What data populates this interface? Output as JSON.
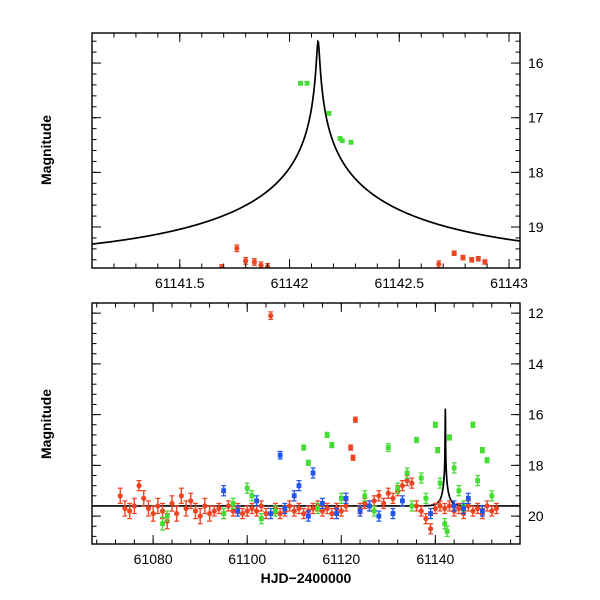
{
  "chart_data": [
    {
      "type": "scatter",
      "panel": "top",
      "title": "",
      "xlabel": "",
      "ylabel": "Magnitude",
      "xlim": [
        61141.1,
        61143.05
      ],
      "ylim": [
        19.75,
        15.45
      ],
      "y_inverted": true,
      "xticks": [
        61141.5,
        61142,
        61142.5,
        61143
      ],
      "xtick_labels": [
        "61141.5",
        "61142",
        "61142.5",
        "61143"
      ],
      "yticks": [
        16,
        17,
        18,
        19
      ],
      "ytick_labels": [
        "16",
        "17",
        "18",
        "19"
      ],
      "model": {
        "name": "model light curve",
        "t0": 61142.13,
        "m_peak": 15.6,
        "m_base": 19.6,
        "u0": 0.005,
        "tE": 1.2,
        "color": "#000000"
      },
      "series": [
        {
          "name": "green",
          "color": "#44dd33",
          "points": [
            {
              "x": 61142.05,
              "y": 16.37,
              "err": 0.03
            },
            {
              "x": 61142.08,
              "y": 16.37,
              "err": 0.03
            },
            {
              "x": 61142.18,
              "y": 16.92,
              "err": 0.03
            },
            {
              "x": 61142.23,
              "y": 17.38,
              "err": 0.03
            },
            {
              "x": 61142.24,
              "y": 17.42,
              "err": 0.03
            },
            {
              "x": 61142.28,
              "y": 17.45,
              "err": 0.03
            }
          ]
        },
        {
          "name": "red",
          "color": "#ee4422",
          "points": [
            {
              "x": 61141.69,
              "y": 19.75,
              "err": 0.06
            },
            {
              "x": 61141.76,
              "y": 19.39,
              "err": 0.06
            },
            {
              "x": 61141.8,
              "y": 19.62,
              "err": 0.06
            },
            {
              "x": 61141.84,
              "y": 19.64,
              "err": 0.06
            },
            {
              "x": 61141.87,
              "y": 19.7,
              "err": 0.06
            },
            {
              "x": 61141.9,
              "y": 19.73,
              "err": 0.06
            },
            {
              "x": 61142.68,
              "y": 19.68,
              "err": 0.06
            },
            {
              "x": 61142.75,
              "y": 19.48,
              "err": 0.04
            },
            {
              "x": 61142.79,
              "y": 19.56,
              "err": 0.04
            },
            {
              "x": 61142.83,
              "y": 19.6,
              "err": 0.04
            },
            {
              "x": 61142.86,
              "y": 19.58,
              "err": 0.04
            },
            {
              "x": 61142.89,
              "y": 19.64,
              "err": 0.04
            }
          ]
        }
      ]
    },
    {
      "type": "scatter",
      "panel": "bottom",
      "title": "",
      "xlabel": "HJD−2400000",
      "ylabel": "Magnitude",
      "xlim": [
        61067,
        61158
      ],
      "ylim": [
        21.1,
        11.6
      ],
      "y_inverted": true,
      "xticks": [
        61080,
        61100,
        61120,
        61140
      ],
      "xtick_labels": [
        "61080",
        "61100",
        "61120",
        "61140"
      ],
      "yticks": [
        12,
        14,
        16,
        18,
        20
      ],
      "ytick_labels": [
        "12",
        "14",
        "16",
        "18",
        "20"
      ],
      "model": {
        "name": "model light curve",
        "t0": 61142.13,
        "m_peak": 15.6,
        "m_base": 19.6,
        "u0": 0.005,
        "tE": 1.2,
        "color": "#000000"
      },
      "series": [
        {
          "name": "red",
          "color": "#ee4422",
          "points": [
            {
              "x": 61073,
              "y": 19.2,
              "err": 0.3
            },
            {
              "x": 61074,
              "y": 19.7,
              "err": 0.3
            },
            {
              "x": 61075,
              "y": 19.8,
              "err": 0.3
            },
            {
              "x": 61076,
              "y": 19.6,
              "err": 0.3
            },
            {
              "x": 61077,
              "y": 18.8,
              "err": 0.2
            },
            {
              "x": 61078,
              "y": 19.3,
              "err": 0.3
            },
            {
              "x": 61079,
              "y": 19.7,
              "err": 0.3
            },
            {
              "x": 61080,
              "y": 19.9,
              "err": 0.3
            },
            {
              "x": 61081,
              "y": 19.6,
              "err": 0.3
            },
            {
              "x": 61082,
              "y": 19.8,
              "err": 0.3
            },
            {
              "x": 61083,
              "y": 20.2,
              "err": 0.3
            },
            {
              "x": 61084,
              "y": 19.5,
              "err": 0.3
            },
            {
              "x": 61085,
              "y": 19.9,
              "err": 0.3
            },
            {
              "x": 61086,
              "y": 19.2,
              "err": 0.3
            },
            {
              "x": 61087,
              "y": 19.7,
              "err": 0.3
            },
            {
              "x": 61088,
              "y": 19.4,
              "err": 0.3
            },
            {
              "x": 61089,
              "y": 19.8,
              "err": 0.3
            },
            {
              "x": 61090,
              "y": 20.0,
              "err": 0.3
            },
            {
              "x": 61091,
              "y": 19.6,
              "err": 0.3
            },
            {
              "x": 61092,
              "y": 19.9,
              "err": 0.3
            },
            {
              "x": 61093,
              "y": 19.8,
              "err": 0.2
            },
            {
              "x": 61094,
              "y": 19.7,
              "err": 0.2
            },
            {
              "x": 61095,
              "y": 19.9,
              "err": 0.2
            },
            {
              "x": 61096,
              "y": 19.6,
              "err": 0.2
            },
            {
              "x": 61097,
              "y": 19.8,
              "err": 0.2
            },
            {
              "x": 61098,
              "y": 19.7,
              "err": 0.2
            },
            {
              "x": 61099,
              "y": 19.9,
              "err": 0.2
            },
            {
              "x": 61100,
              "y": 19.8,
              "err": 0.2
            },
            {
              "x": 61101,
              "y": 19.7,
              "err": 0.2
            },
            {
              "x": 61102,
              "y": 19.8,
              "err": 0.2
            },
            {
              "x": 61103,
              "y": 19.6,
              "err": 0.2
            },
            {
              "x": 61104,
              "y": 19.9,
              "err": 0.2
            },
            {
              "x": 61105,
              "y": 12.1,
              "err": 0.15
            },
            {
              "x": 61106,
              "y": 19.7,
              "err": 0.2
            },
            {
              "x": 61107,
              "y": 19.9,
              "err": 0.2
            },
            {
              "x": 61108,
              "y": 19.8,
              "err": 0.2
            },
            {
              "x": 61109,
              "y": 19.6,
              "err": 0.2
            },
            {
              "x": 61110,
              "y": 19.8,
              "err": 0.2
            },
            {
              "x": 61111,
              "y": 19.7,
              "err": 0.2
            },
            {
              "x": 61112,
              "y": 19.9,
              "err": 0.2
            },
            {
              "x": 61113,
              "y": 19.8,
              "err": 0.2
            },
            {
              "x": 61114,
              "y": 19.7,
              "err": 0.2
            },
            {
              "x": 61115,
              "y": 19.6,
              "err": 0.2
            },
            {
              "x": 61116,
              "y": 19.8,
              "err": 0.2
            },
            {
              "x": 61117,
              "y": 19.7,
              "err": 0.2
            },
            {
              "x": 61118,
              "y": 19.9,
              "err": 0.2
            },
            {
              "x": 61119,
              "y": 19.7,
              "err": 0.2
            },
            {
              "x": 61120,
              "y": 19.8,
              "err": 0.2
            },
            {
              "x": 61121,
              "y": 19.6,
              "err": 0.2
            },
            {
              "x": 61122,
              "y": 17.3,
              "err": 0.1
            },
            {
              "x": 61122.5,
              "y": 17.7,
              "err": 0.1
            },
            {
              "x": 61123,
              "y": 16.2,
              "err": 0.1
            },
            {
              "x": 61124,
              "y": 19.7,
              "err": 0.2
            },
            {
              "x": 61125,
              "y": 19.5,
              "err": 0.2
            },
            {
              "x": 61126,
              "y": 19.6,
              "err": 0.2
            },
            {
              "x": 61127,
              "y": 19.4,
              "err": 0.2
            },
            {
              "x": 61128,
              "y": 19.2,
              "err": 0.2
            },
            {
              "x": 61129,
              "y": 19.5,
              "err": 0.2
            },
            {
              "x": 61130,
              "y": 19.1,
              "err": 0.2
            },
            {
              "x": 61131,
              "y": 19.3,
              "err": 0.2
            },
            {
              "x": 61132,
              "y": 19.0,
              "err": 0.2
            },
            {
              "x": 61133,
              "y": 18.8,
              "err": 0.2
            },
            {
              "x": 61134,
              "y": 18.6,
              "err": 0.2
            },
            {
              "x": 61135,
              "y": 18.7,
              "err": 0.2
            },
            {
              "x": 61136,
              "y": 19.6,
              "err": 0.2
            },
            {
              "x": 61137,
              "y": 19.8,
              "err": 0.2
            },
            {
              "x": 61138,
              "y": 20.1,
              "err": 0.2
            },
            {
              "x": 61139,
              "y": 20.5,
              "err": 0.2
            },
            {
              "x": 61140,
              "y": 19.7,
              "err": 0.2
            },
            {
              "x": 61141,
              "y": 19.6,
              "err": 0.2
            },
            {
              "x": 61142,
              "y": 19.7,
              "err": 0.2
            },
            {
              "x": 61143,
              "y": 19.6,
              "err": 0.2
            },
            {
              "x": 61144,
              "y": 19.8,
              "err": 0.2
            },
            {
              "x": 61145,
              "y": 19.7,
              "err": 0.2
            },
            {
              "x": 61146,
              "y": 19.9,
              "err": 0.2
            },
            {
              "x": 61147,
              "y": 19.6,
              "err": 0.2
            },
            {
              "x": 61148,
              "y": 19.8,
              "err": 0.2
            },
            {
              "x": 61149,
              "y": 19.7,
              "err": 0.2
            },
            {
              "x": 61150,
              "y": 19.9,
              "err": 0.2
            },
            {
              "x": 61151,
              "y": 19.6,
              "err": 0.2
            },
            {
              "x": 61152,
              "y": 19.8,
              "err": 0.2
            },
            {
              "x": 61153,
              "y": 19.7,
              "err": 0.2
            }
          ]
        },
        {
          "name": "green",
          "color": "#44dd33",
          "points": [
            {
              "x": 61082,
              "y": 20.3,
              "err": 0.25
            },
            {
              "x": 61083,
              "y": 20.0,
              "err": 0.2
            },
            {
              "x": 61095,
              "y": 19.9,
              "err": 0.2
            },
            {
              "x": 61097,
              "y": 19.5,
              "err": 0.2
            },
            {
              "x": 61100,
              "y": 18.9,
              "err": 0.2
            },
            {
              "x": 61101,
              "y": 19.2,
              "err": 0.2
            },
            {
              "x": 61103,
              "y": 20.1,
              "err": 0.2
            },
            {
              "x": 61106,
              "y": 19.8,
              "err": 0.2
            },
            {
              "x": 61112,
              "y": 17.3,
              "err": 0.1
            },
            {
              "x": 61113,
              "y": 17.9,
              "err": 0.1
            },
            {
              "x": 61115,
              "y": 19.7,
              "err": 0.2
            },
            {
              "x": 61117,
              "y": 16.8,
              "err": 0.1
            },
            {
              "x": 61118,
              "y": 17.2,
              "err": 0.1
            },
            {
              "x": 61120,
              "y": 19.3,
              "err": 0.2
            },
            {
              "x": 61125,
              "y": 19.2,
              "err": 0.2
            },
            {
              "x": 61127,
              "y": 19.8,
              "err": 0.2
            },
            {
              "x": 61130,
              "y": 17.3,
              "err": 0.15
            },
            {
              "x": 61132,
              "y": 18.9,
              "err": 0.2
            },
            {
              "x": 61134,
              "y": 18.3,
              "err": 0.2
            },
            {
              "x": 61135,
              "y": 19.6,
              "err": 0.2
            },
            {
              "x": 61136,
              "y": 17.0,
              "err": 0.1
            },
            {
              "x": 61137,
              "y": 18.5,
              "err": 0.2
            },
            {
              "x": 61138,
              "y": 19.3,
              "err": 0.2
            },
            {
              "x": 61140,
              "y": 16.4,
              "err": 0.1
            },
            {
              "x": 61140.5,
              "y": 17.4,
              "err": 0.1
            },
            {
              "x": 61141,
              "y": 18.7,
              "err": 0.2
            },
            {
              "x": 61142,
              "y": 20.3,
              "err": 0.2
            },
            {
              "x": 61142.5,
              "y": 20.6,
              "err": 0.2
            },
            {
              "x": 61143,
              "y": 16.9,
              "err": 0.1
            },
            {
              "x": 61144,
              "y": 18.1,
              "err": 0.2
            },
            {
              "x": 61145,
              "y": 19.0,
              "err": 0.2
            },
            {
              "x": 61146,
              "y": 19.6,
              "err": 0.2
            },
            {
              "x": 61148,
              "y": 16.4,
              "err": 0.1
            },
            {
              "x": 61149,
              "y": 18.6,
              "err": 0.2
            },
            {
              "x": 61150,
              "y": 17.4,
              "err": 0.1
            },
            {
              "x": 61151,
              "y": 17.8,
              "err": 0.1
            },
            {
              "x": 61152,
              "y": 19.2,
              "err": 0.2
            }
          ]
        },
        {
          "name": "blue",
          "color": "#2255ee",
          "points": [
            {
              "x": 61095,
              "y": 19.0,
              "err": 0.2
            },
            {
              "x": 61098,
              "y": 19.8,
              "err": 0.2
            },
            {
              "x": 61102,
              "y": 19.4,
              "err": 0.2
            },
            {
              "x": 61105,
              "y": 19.9,
              "err": 0.2
            },
            {
              "x": 61107,
              "y": 17.6,
              "err": 0.15
            },
            {
              "x": 61108,
              "y": 19.7,
              "err": 0.2
            },
            {
              "x": 61110,
              "y": 19.2,
              "err": 0.2
            },
            {
              "x": 61111,
              "y": 18.8,
              "err": 0.2
            },
            {
              "x": 61113,
              "y": 20.0,
              "err": 0.2
            },
            {
              "x": 61114,
              "y": 18.3,
              "err": 0.2
            },
            {
              "x": 61116,
              "y": 19.5,
              "err": 0.2
            },
            {
              "x": 61119,
              "y": 19.9,
              "err": 0.2
            },
            {
              "x": 61121,
              "y": 19.3,
              "err": 0.2
            },
            {
              "x": 61124,
              "y": 19.8,
              "err": 0.2
            },
            {
              "x": 61126,
              "y": 19.6,
              "err": 0.2
            },
            {
              "x": 61128,
              "y": 20.0,
              "err": 0.2
            },
            {
              "x": 61131,
              "y": 19.9,
              "err": 0.2
            },
            {
              "x": 61133,
              "y": 19.4,
              "err": 0.2
            },
            {
              "x": 61139,
              "y": 19.9,
              "err": 0.2
            },
            {
              "x": 61144,
              "y": 19.6,
              "err": 0.2
            },
            {
              "x": 61146,
              "y": 19.7,
              "err": 0.2
            },
            {
              "x": 61147,
              "y": 19.3,
              "err": 0.2
            },
            {
              "x": 61150,
              "y": 19.8,
              "err": 0.2
            }
          ]
        }
      ]
    }
  ]
}
